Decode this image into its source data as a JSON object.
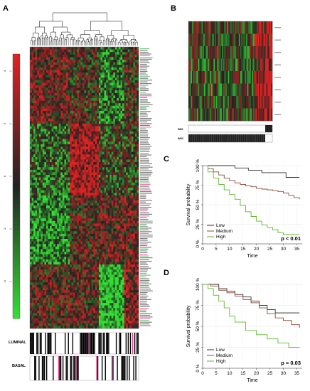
{
  "panels": {
    "a": {
      "letter": "A"
    },
    "b": {
      "letter": "B"
    },
    "c": {
      "letter": "C"
    },
    "d": {
      "letter": "D"
    }
  },
  "heatmap_a": {
    "color_scale": {
      "low": "#33dd33",
      "mid": "#222222",
      "high": "#dd2222"
    },
    "scale_ticks": [
      "4",
      "2",
      "0",
      "-2",
      "-4"
    ],
    "annotation_rows": [
      "LUMINAL",
      "BASAL"
    ]
  },
  "heatmap_b": {
    "annotation_rows": [
      "IM61",
      "IM62"
    ]
  },
  "chart_data": [
    {
      "type": "line",
      "panel": "C",
      "title": "",
      "xlabel": "Time",
      "ylabel": "Survival probability",
      "xlim": [
        0,
        37
      ],
      "ylim": [
        0,
        1
      ],
      "xticks": [
        "0",
        "5",
        "10",
        "15",
        "20",
        "25",
        "30",
        "35"
      ],
      "yticks": [
        "0 %",
        "25 %",
        "50 %",
        "75 %",
        "100 %"
      ],
      "legend_position": "bottom-left",
      "annotation": "p < 0.01",
      "series": [
        {
          "name": "Low",
          "color": "#333333",
          "x": [
            0,
            8,
            12,
            17,
            22,
            27,
            31,
            34,
            36
          ],
          "y": [
            1.0,
            1.0,
            0.97,
            0.94,
            0.91,
            0.91,
            0.85,
            0.85,
            0.85
          ]
        },
        {
          "name": "Medium",
          "color": "#8b4a3a",
          "x": [
            0,
            2,
            4,
            6,
            8,
            10,
            12,
            14,
            16,
            18,
            20,
            22,
            24,
            26,
            28,
            30,
            32,
            34,
            36
          ],
          "y": [
            1.0,
            0.96,
            0.92,
            0.88,
            0.84,
            0.81,
            0.78,
            0.76,
            0.74,
            0.73,
            0.71,
            0.7,
            0.69,
            0.68,
            0.67,
            0.65,
            0.62,
            0.59,
            0.57
          ]
        },
        {
          "name": "High",
          "color": "#5cb82e",
          "x": [
            0,
            2,
            4,
            6,
            8,
            10,
            12,
            14,
            16,
            18,
            20,
            22,
            24,
            26,
            28,
            30,
            32,
            34,
            36
          ],
          "y": [
            1.0,
            0.92,
            0.84,
            0.76,
            0.69,
            0.63,
            0.57,
            0.49,
            0.41,
            0.35,
            0.29,
            0.24,
            0.21,
            0.18,
            0.14,
            0.12,
            0.12,
            0.12,
            0.12
          ]
        }
      ]
    },
    {
      "type": "line",
      "panel": "D",
      "title": "",
      "xlabel": "Time",
      "ylabel": "Survival probability",
      "xlim": [
        0,
        37
      ],
      "ylim": [
        0,
        1
      ],
      "xticks": [
        "0",
        "5",
        "10",
        "15",
        "20",
        "25",
        "30",
        "35"
      ],
      "yticks": [
        "0 %",
        "25 %",
        "50 %",
        "75 %",
        "100 %"
      ],
      "legend_position": "bottom-left",
      "annotation": "p = 0.03",
      "series": [
        {
          "name": "Low",
          "color": "#333333",
          "x": [
            0,
            3,
            6,
            9,
            12,
            15,
            18,
            21,
            24,
            27,
            30,
            33,
            36
          ],
          "y": [
            1.0,
            1.0,
            0.95,
            0.92,
            0.88,
            0.85,
            0.8,
            0.75,
            0.7,
            0.66,
            0.66,
            0.66,
            0.66
          ]
        },
        {
          "name": "Medium",
          "color": "#8b4a3a",
          "x": [
            0,
            3,
            6,
            9,
            12,
            15,
            18,
            21,
            24,
            27,
            30,
            33,
            36
          ],
          "y": [
            1.0,
            0.98,
            0.93,
            0.9,
            0.86,
            0.82,
            0.78,
            0.72,
            0.65,
            0.6,
            0.57,
            0.52,
            0.48
          ]
        },
        {
          "name": "High",
          "color": "#5cb82e",
          "x": [
            0,
            2,
            4,
            6,
            8,
            10,
            12,
            16,
            20,
            24,
            28,
            32,
            36
          ],
          "y": [
            1.0,
            0.95,
            0.87,
            0.8,
            0.72,
            0.62,
            0.55,
            0.45,
            0.4,
            0.35,
            0.3,
            0.25,
            0.25
          ]
        }
      ]
    }
  ]
}
